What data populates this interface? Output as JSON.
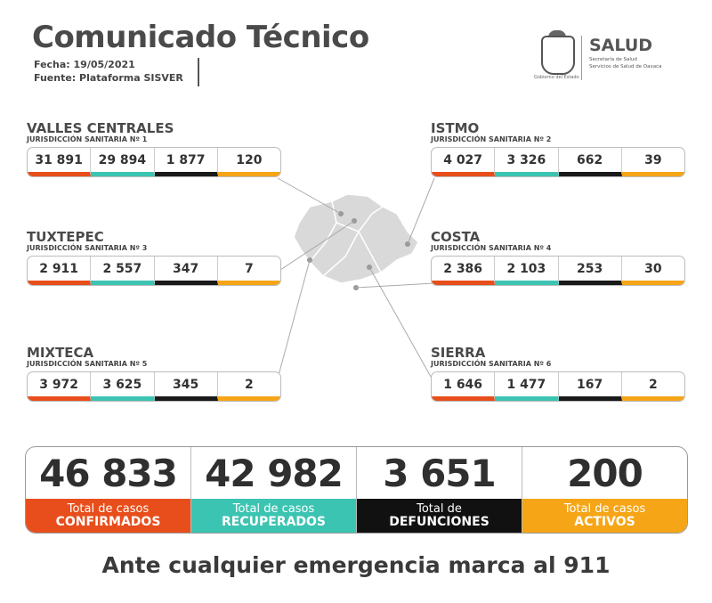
{
  "header": {
    "title": "Comunicado Técnico",
    "date": "Fecha: 19/05/2021",
    "source": "Fuente: Plataforma SISVER"
  },
  "logo": {
    "brand": "SALUD",
    "sub1": "Secretaría de Salud",
    "sub2": "Servicios de Salud de Oaxaca",
    "gov": "Gobierno del Estado"
  },
  "regions": [
    {
      "name": "VALLES CENTRALES",
      "jurisdiction": "JURISDICCIÓN SANITARIA Nº 1",
      "confirmed": "31 891",
      "recovered": "29 894",
      "deaths": "1 877",
      "active": "120"
    },
    {
      "name": "ISTMO",
      "jurisdiction": "JURISDICCIÓN SANITARIA Nº 2",
      "confirmed": "4 027",
      "recovered": "3 326",
      "deaths": "662",
      "active": "39"
    },
    {
      "name": "TUXTEPEC",
      "jurisdiction": "JURISDICCIÓN SANITARIA Nº 3",
      "confirmed": "2 911",
      "recovered": "2 557",
      "deaths": "347",
      "active": "7"
    },
    {
      "name": "COSTA",
      "jurisdiction": "JURISDICCIÓN SANITARIA Nº 4",
      "confirmed": "2 386",
      "recovered": "2 103",
      "deaths": "253",
      "active": "30"
    },
    {
      "name": "MIXTECA",
      "jurisdiction": "JURISDICCIÓN SANITARIA Nº 5",
      "confirmed": "3 972",
      "recovered": "3 625",
      "deaths": "345",
      "active": "2"
    },
    {
      "name": "SIERRA",
      "jurisdiction": "JURISDICCIÓN SANITARIA Nº 6",
      "confirmed": "1 646",
      "recovered": "1 477",
      "deaths": "167",
      "active": "2"
    }
  ],
  "totals": [
    {
      "value": "46 833",
      "line1": "Total de casos",
      "line2": "CONFIRMADOS"
    },
    {
      "value": "42 982",
      "line1": "Total de casos",
      "line2": "RECUPERADOS"
    },
    {
      "value": "3 651",
      "line1": "Total de",
      "line2": "DEFUNCIONES"
    },
    {
      "value": "200",
      "line1": "Total de casos",
      "line2": "ACTIVOS"
    }
  ],
  "footer": "Ante cualquier emergencia marca al 911",
  "colors": {
    "confirmed": "#e84e1b",
    "recovered": "#3cc4b2",
    "deaths": "#111111",
    "active": "#f5a516"
  }
}
